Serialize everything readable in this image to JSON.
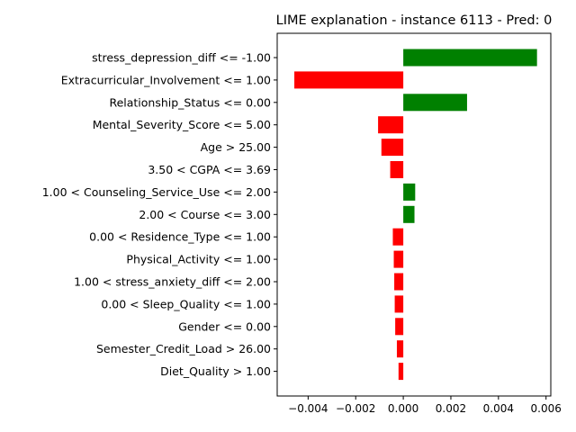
{
  "chart_data": {
    "type": "bar",
    "orientation": "horizontal",
    "title": "LIME explanation - instance 6113 - Pred: 0",
    "xlabel": "",
    "ylabel": "",
    "xlim": [
      -0.0053,
      0.0062
    ],
    "xticks": [
      -0.004,
      -0.002,
      0.0,
      0.002,
      0.004,
      0.006
    ],
    "xtick_labels": [
      "−0.004",
      "−0.002",
      "0.000",
      "0.002",
      "0.004",
      "0.006"
    ],
    "categories": [
      "stress_depression_diff <= -1.00",
      "Extracurricular_Involvement <= 1.00",
      "Relationship_Status <= 0.00",
      "Mental_Severity_Score <= 5.00",
      "Age > 25.00",
      "3.50 < CGPA <= 3.69",
      "1.00 < Counseling_Service_Use <= 2.00",
      "2.00 < Course <= 3.00",
      "0.00 < Residence_Type <= 1.00",
      "Physical_Activity <= 1.00",
      "1.00 < stress_anxiety_diff <= 2.00",
      "0.00 < Sleep_Quality <= 1.00",
      "Gender <= 0.00",
      "Semester_Credit_Load > 26.00",
      "Diet_Quality > 1.00"
    ],
    "values": [
      0.00562,
      -0.00458,
      0.00268,
      -0.00106,
      -0.00092,
      -0.00055,
      0.0005,
      0.00047,
      -0.00044,
      -0.0004,
      -0.00038,
      -0.00036,
      -0.00034,
      -0.00027,
      -0.0002
    ],
    "colors": {
      "positive": "#008000",
      "negative": "#ff0000"
    },
    "grid": false
  }
}
